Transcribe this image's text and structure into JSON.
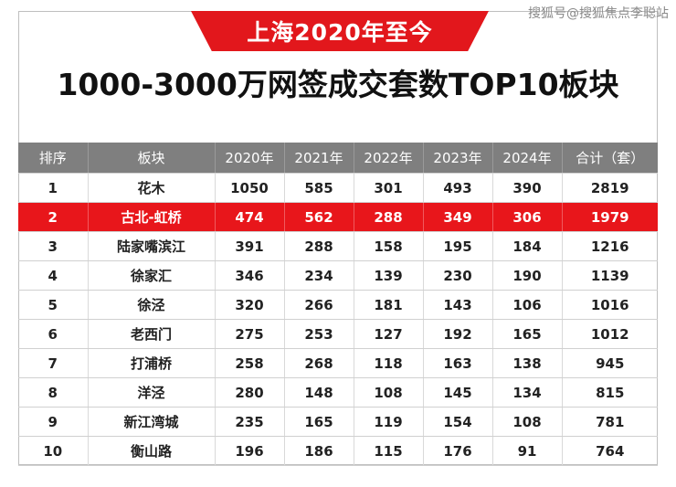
{
  "watermark": "搜狐号@搜狐焦点李聪站",
  "banner": "上海2020年至今",
  "title": "1000-3000万网签成交套数TOP10板块",
  "table": {
    "headers": [
      "排序",
      "板块",
      "2020年",
      "2021年",
      "2022年",
      "2023年",
      "2024年",
      "合计（套）"
    ],
    "rows": [
      [
        "1",
        "花木",
        "1050",
        "585",
        "301",
        "493",
        "390",
        "2819"
      ],
      [
        "2",
        "古北-虹桥",
        "474",
        "562",
        "288",
        "349",
        "306",
        "1979"
      ],
      [
        "3",
        "陆家嘴滨江",
        "391",
        "288",
        "158",
        "195",
        "184",
        "1216"
      ],
      [
        "4",
        "徐家汇",
        "346",
        "234",
        "139",
        "230",
        "190",
        "1139"
      ],
      [
        "5",
        "徐泾",
        "320",
        "266",
        "181",
        "143",
        "106",
        "1016"
      ],
      [
        "6",
        "老西门",
        "275",
        "253",
        "127",
        "192",
        "165",
        "1012"
      ],
      [
        "7",
        "打浦桥",
        "258",
        "268",
        "118",
        "163",
        "138",
        "945"
      ],
      [
        "8",
        "洋泾",
        "280",
        "148",
        "108",
        "145",
        "134",
        "815"
      ],
      [
        "9",
        "新江湾城",
        "235",
        "165",
        "119",
        "154",
        "108",
        "781"
      ],
      [
        "10",
        "衡山路",
        "196",
        "186",
        "115",
        "176",
        "91",
        "764"
      ]
    ],
    "highlight_row": 1,
    "highlight_color": "#e8161b",
    "header_color": "#7f7f7f"
  }
}
